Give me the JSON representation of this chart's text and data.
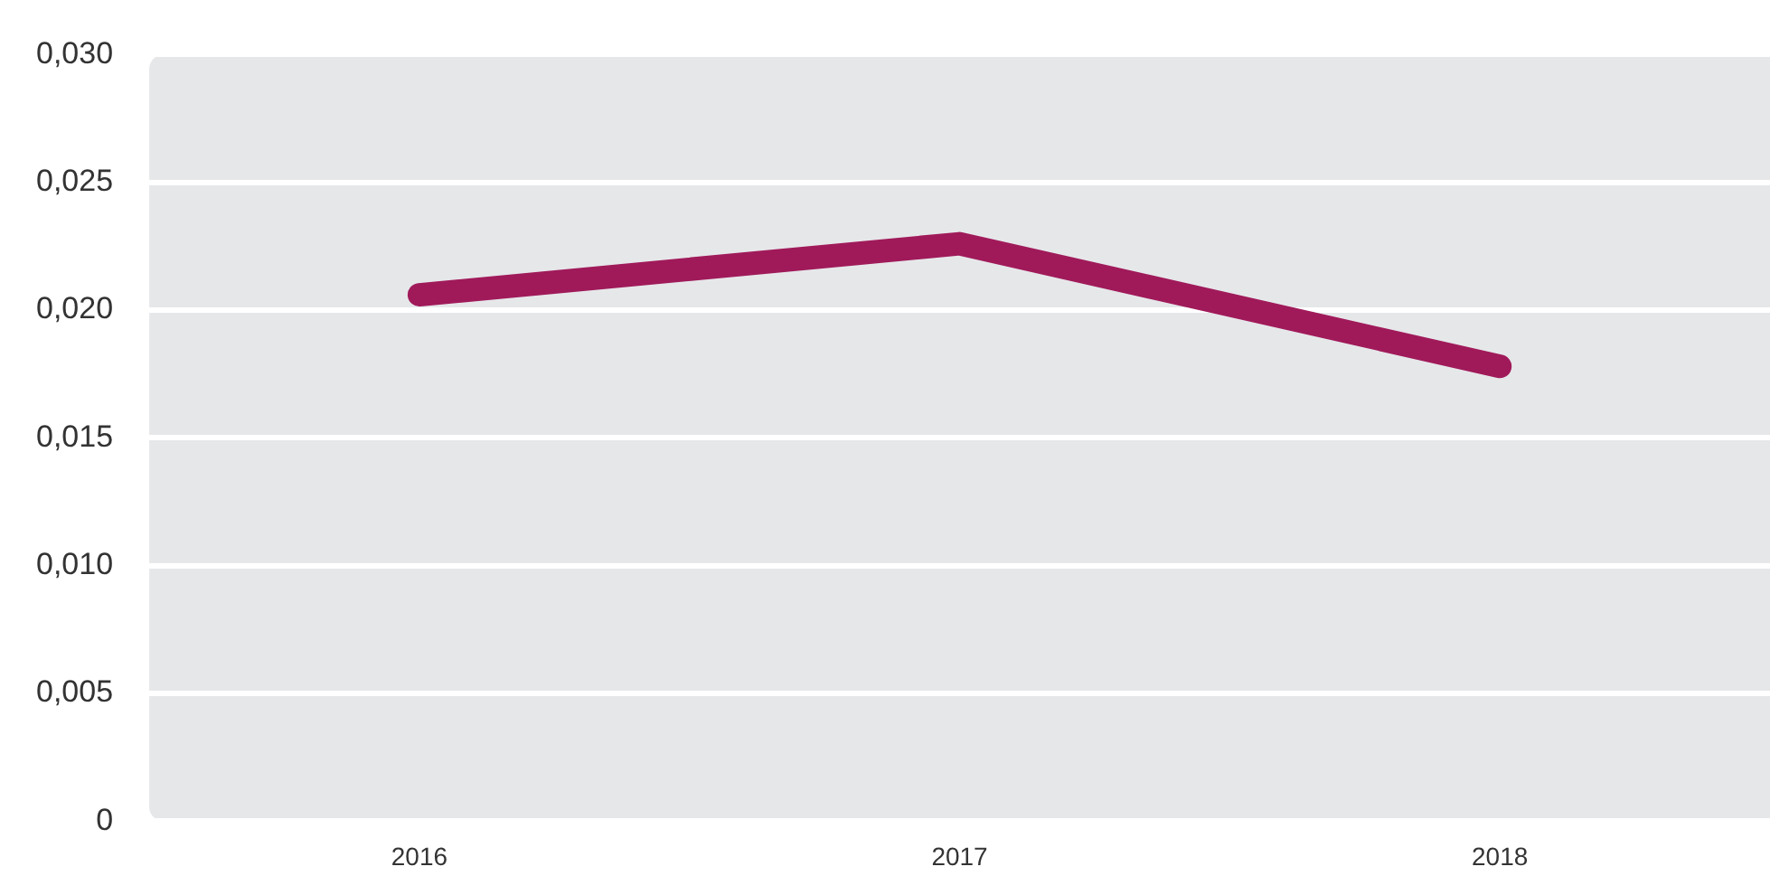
{
  "chart_data": {
    "type": "line",
    "categories": [
      "2016",
      "2017",
      "2018"
    ],
    "series": [
      {
        "color": "#a01a5a",
        "values": [
          0.0206,
          0.0226,
          0.0178
        ]
      }
    ],
    "ylim": [
      0,
      0.03
    ],
    "yticks": [
      0,
      {
        "value": 0.005,
        "label": "0,005"
      },
      {
        "value": 0.01,
        "label": "0,010"
      },
      {
        "value": 0.015,
        "label": "0,015"
      },
      {
        "value": 0.02,
        "label": "0,020"
      },
      {
        "value": 0.025,
        "label": "0,025"
      },
      {
        "value": 0.03,
        "label": "0,030"
      }
    ],
    "grid": "y",
    "legend": false,
    "marker": "none",
    "line_style": "solid"
  }
}
